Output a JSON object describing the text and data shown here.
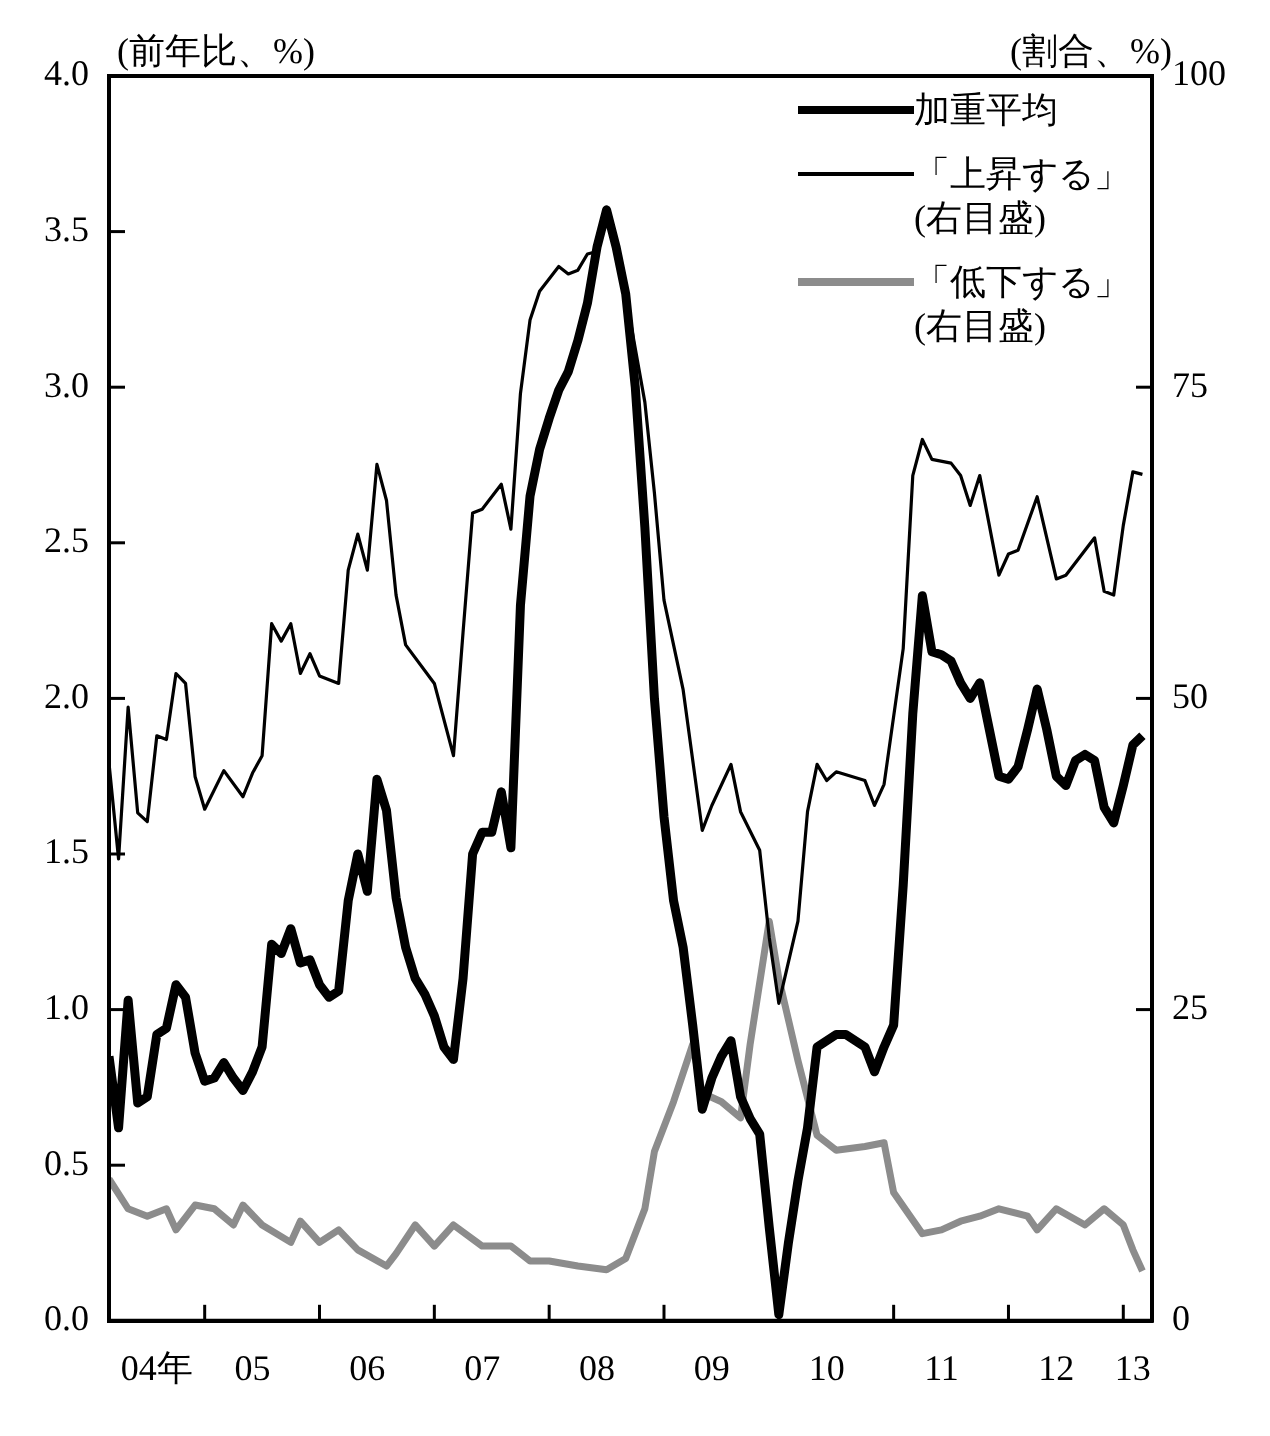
{
  "chart_data": {
    "type": "line",
    "ylabel": "(前年比、%)",
    "y2label": "(割合、%)",
    "legend": "top right",
    "grid": false,
    "xlim": [
      "2004-03",
      "2013-04"
    ],
    "xticks": [
      {
        "value": "2004-08",
        "label": "04年"
      },
      {
        "value": "2005-01",
        "label": null
      },
      {
        "value": "2005-06",
        "label": "05"
      },
      {
        "value": "2006-01",
        "label": null
      },
      {
        "value": "2006-06",
        "label": "06"
      },
      {
        "value": "2007-01",
        "label": null
      },
      {
        "value": "2007-06",
        "label": "07"
      },
      {
        "value": "2008-01",
        "label": null
      },
      {
        "value": "2008-06",
        "label": "08"
      },
      {
        "value": "2009-01",
        "label": null
      },
      {
        "value": "2009-06",
        "label": "09"
      },
      {
        "value": "2010-01",
        "label": null
      },
      {
        "value": "2010-06",
        "label": "10"
      },
      {
        "value": "2011-01",
        "label": null
      },
      {
        "value": "2011-06",
        "label": "11"
      },
      {
        "value": "2012-01",
        "label": null
      },
      {
        "value": "2012-06",
        "label": "12"
      },
      {
        "value": "2013-01",
        "label": null
      },
      {
        "value": "2013-02",
        "label": "13"
      }
    ],
    "ylim": [
      0,
      4
    ],
    "yticks": [
      {
        "value": 0,
        "label": "0.0"
      },
      {
        "value": 0.5,
        "label": "0.5"
      },
      {
        "value": 1,
        "label": "1.0"
      },
      {
        "value": 1.5,
        "label": "1.5"
      },
      {
        "value": 2,
        "label": "2.0"
      },
      {
        "value": 2.5,
        "label": "2.5"
      },
      {
        "value": 3,
        "label": "3.0"
      },
      {
        "value": 3.5,
        "label": "3.5"
      },
      {
        "value": 4,
        "label": "4.0"
      }
    ],
    "y2lim": [
      0,
      100
    ],
    "y2ticks": [
      0,
      25,
      50,
      75,
      100
    ],
    "series": [
      {
        "name": "加重平均",
        "color": "#000000",
        "x": [
          "2004-03",
          "2004-04",
          "2004-05",
          "2004-06",
          "2004-07",
          "2004-08",
          "2004-09",
          "2004-10",
          "2004-11",
          "2004-12",
          "2005-01",
          "2005-02",
          "2005-03",
          "2005-04",
          "2005-05",
          "2005-06",
          "2005-07",
          "2005-08",
          "2005-09",
          "2005-10",
          "2005-11",
          "2005-12",
          "2006-01",
          "2006-02",
          "2006-03",
          "2006-04",
          "2006-05",
          "2006-06",
          "2006-07",
          "2006-08",
          "2006-09",
          "2006-10",
          "2006-11",
          "2006-12",
          "2007-01",
          "2007-02",
          "2007-03",
          "2007-04",
          "2007-05",
          "2007-06",
          "2007-07",
          "2007-08",
          "2007-09",
          "2007-10",
          "2007-11",
          "2007-12",
          "2008-01",
          "2008-02",
          "2008-03",
          "2008-04",
          "2008-05",
          "2008-06",
          "2008-07",
          "2008-08",
          "2008-09",
          "2008-10",
          "2008-11",
          "2008-12",
          "2009-01",
          "2009-02",
          "2009-03",
          "2009-04",
          "2009-05",
          "2009-06",
          "2009-07",
          "2009-08",
          "2009-09",
          "2009-10",
          "2009-11",
          "2009-12",
          "2010-01",
          "2010-02",
          "2010-03",
          "2010-04",
          "2010-05",
          "2010-06",
          "2010-07",
          "2010-08",
          "2010-09",
          "2010-10",
          "2010-11",
          "2010-12",
          "2011-01",
          "2011-02",
          "2011-03",
          "2011-04",
          "2011-05",
          "2011-06",
          "2011-07",
          "2011-08",
          "2011-09",
          "2011-10",
          "2011-11",
          "2011-12",
          "2012-01",
          "2012-02",
          "2012-03",
          "2012-04",
          "2012-05",
          "2012-06",
          "2012-07",
          "2012-08",
          "2012-09",
          "2012-10",
          "2012-11",
          "2012-12",
          "2013-01",
          "2013-02",
          "2013-03"
        ],
        "values": [
          0.85,
          0.62,
          1.03,
          0.7,
          0.72,
          0.92,
          0.94,
          1.08,
          1.04,
          0.86,
          0.77,
          0.78,
          0.83,
          0.78,
          0.74,
          0.8,
          0.88,
          1.21,
          1.18,
          1.26,
          1.15,
          1.16,
          1.08,
          1.04,
          1.06,
          1.35,
          1.5,
          1.38,
          1.74,
          1.64,
          1.36,
          1.2,
          1.1,
          1.05,
          0.98,
          0.88,
          0.84,
          1.1,
          1.5,
          1.57,
          1.57,
          1.7,
          1.52,
          2.3,
          2.65,
          2.8,
          2.9,
          2.99,
          3.05,
          3.15,
          3.27,
          3.45,
          3.57,
          3.45,
          3.3,
          3,
          2.55,
          2,
          1.62,
          1.35,
          1.2,
          0.95,
          0.68,
          0.78,
          0.85,
          0.9,
          0.72,
          0.65,
          0.6,
          0.3,
          0.02,
          0.25,
          0.45,
          0.62,
          0.88,
          0.9,
          0.92,
          0.92,
          0.9,
          0.88,
          0.8,
          0.88,
          0.95,
          1.4,
          1.95,
          2.33,
          2.15,
          2.14,
          2.12,
          2.05,
          2,
          2.05,
          1.9,
          1.75,
          1.74,
          1.78,
          1.9,
          2.03,
          1.9,
          1.75,
          1.72,
          1.8,
          1.82,
          1.8,
          1.65,
          1.6,
          1.72,
          1.85,
          1.88
        ]
      },
      {
        "name": "「上昇する」(右目盛)",
        "color": "#000000",
        "axis": "y2",
        "x": [
          "2004-03",
          "2004-04",
          "2004-05",
          "2004-06",
          "2004-07",
          "2004-08",
          "2004-09",
          "2004-10",
          "2004-11",
          "2004-12",
          "2005-01",
          "2005-03",
          "2005-05",
          "2005-06",
          "2005-07",
          "2005-08",
          "2005-09",
          "2005-10",
          "2005-11",
          "2005-12",
          "2006-01",
          "2006-03",
          "2006-04",
          "2006-05",
          "2006-06",
          "2006-07",
          "2006-08",
          "2006-09",
          "2006-10",
          "2007-01",
          "2007-03",
          "2007-04",
          "2007-05",
          "2007-06",
          "2007-08",
          "2007-09",
          "2007-10",
          "2007-11",
          "2007-12",
          "2008-02",
          "2008-03",
          "2008-04",
          "2008-05",
          "2008-06",
          "2008-07",
          "2008-08",
          "2008-09",
          "2008-11",
          "2008-12",
          "2009-01",
          "2009-03",
          "2009-05",
          "2009-06",
          "2009-08",
          "2009-09",
          "2009-11",
          "2009-12",
          "2010-01",
          "2010-03",
          "2010-04",
          "2010-05",
          "2010-06",
          "2010-07",
          "2010-10",
          "2010-11",
          "2010-12",
          "2011-02",
          "2011-03",
          "2011-04",
          "2011-05",
          "2011-07",
          "2011-08",
          "2011-09",
          "2011-10",
          "2011-12",
          "2012-01",
          "2012-02",
          "2012-04",
          "2012-06",
          "2012-07",
          "2012-08",
          "2012-10",
          "2012-11",
          "2012-12",
          "2013-01",
          "2013-02",
          "2013-03"
        ],
        "values": [
          44.8,
          37.1,
          49.3,
          40.8,
          40.1,
          47,
          46.7,
          52,
          51.2,
          43.7,
          41.1,
          44.2,
          42.1,
          44,
          45.4,
          56,
          54.6,
          56,
          52,
          53.6,
          51.8,
          51.2,
          60.3,
          63.2,
          60.3,
          68.8,
          65.9,
          58.3,
          54.3,
          51.2,
          45.4,
          55.3,
          64.9,
          65.2,
          67.2,
          63.6,
          74.5,
          80.4,
          82.7,
          84.7,
          84.1,
          84.4,
          85.7,
          85.9,
          88.4,
          86.1,
          82.4,
          73.8,
          66.5,
          57.9,
          50.7,
          39.4,
          41.4,
          44.7,
          40.9,
          37.8,
          30.8,
          25.5,
          32.1,
          40.9,
          44.7,
          43.4,
          44.1,
          43.4,
          41.4,
          43.1,
          54,
          67.9,
          70.8,
          69.2,
          68.9,
          67.9,
          65.5,
          67.9,
          59.9,
          61.6,
          61.9,
          66.2,
          59.6,
          59.9,
          60.9,
          62.9,
          58.6,
          58.3,
          63.9,
          68.2,
          68
        ]
      },
      {
        "name": "「低下する」(右目盛)",
        "color": "#8c8c8c",
        "axis": "y2",
        "x": [
          "2004-03",
          "2004-05",
          "2004-07",
          "2004-09",
          "2004-10",
          "2004-12",
          "2005-02",
          "2005-04",
          "2005-05",
          "2005-07",
          "2005-10",
          "2005-11",
          "2006-01",
          "2006-03",
          "2006-05",
          "2006-08",
          "2006-09",
          "2006-11",
          "2007-01",
          "2007-03",
          "2007-06",
          "2007-09",
          "2007-11",
          "2008-01",
          "2008-04",
          "2008-07",
          "2008-09",
          "2008-11",
          "2008-12",
          "2009-02",
          "2009-04",
          "2009-05",
          "2009-07",
          "2009-09",
          "2009-10",
          "2009-12",
          "2010-01",
          "2010-03",
          "2010-05",
          "2010-07",
          "2010-10",
          "2010-12",
          "2011-01",
          "2011-04",
          "2011-06",
          "2011-08",
          "2011-10",
          "2011-12",
          "2012-03",
          "2012-04",
          "2012-06",
          "2012-09",
          "2012-11",
          "2013-01",
          "2013-02",
          "2013-03"
        ],
        "values": [
          11.4,
          9,
          8.4,
          9,
          7.3,
          9.3,
          9,
          7.7,
          9.3,
          7.7,
          6.3,
          8,
          6.3,
          7.3,
          5.7,
          4.4,
          5.4,
          7.7,
          6,
          7.7,
          6,
          6,
          4.8,
          4.8,
          4.4,
          4.1,
          5,
          9,
          13.6,
          17.6,
          22.2,
          18.3,
          17.6,
          16.3,
          22.2,
          32.1,
          27.5,
          20.9,
          14.9,
          13.7,
          14,
          14.3,
          10.3,
          7,
          7.3,
          8,
          8.4,
          9,
          8.4,
          7.3,
          9,
          7.7,
          9,
          7.7,
          5.7,
          4
        ]
      }
    ]
  }
}
